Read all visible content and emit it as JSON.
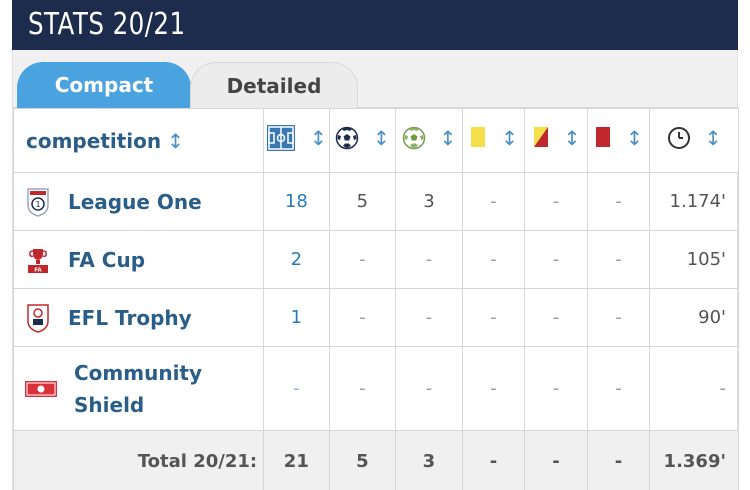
{
  "header": {
    "title": "STATS 20/21"
  },
  "tabs": [
    {
      "label": "Compact",
      "active": true
    },
    {
      "label": "Detailed",
      "active": false
    }
  ],
  "table": {
    "competition_header": "competition",
    "sort_glyph": "↕",
    "column_icons": [
      "pitch-icon",
      "ball-icon",
      "assist-ball-icon",
      "yellow-card-icon",
      "yellow-red-card-icon",
      "red-card-icon",
      "clock-icon"
    ],
    "rows": [
      {
        "competition": "League One",
        "logo": "league-one-logo",
        "apps": "18",
        "goals": "5",
        "assists": "3",
        "yellow": "-",
        "yellow_red": "-",
        "red": "-",
        "minutes": "1.174'"
      },
      {
        "competition": "FA Cup",
        "logo": "fa-cup-logo",
        "apps": "2",
        "goals": "-",
        "assists": "-",
        "yellow": "-",
        "yellow_red": "-",
        "red": "-",
        "minutes": "105'"
      },
      {
        "competition": "EFL Trophy",
        "logo": "efl-trophy-logo",
        "apps": "1",
        "goals": "-",
        "assists": "-",
        "yellow": "-",
        "yellow_red": "-",
        "red": "-",
        "minutes": "90'"
      },
      {
        "competition_line1": "Community",
        "competition_line2": "Shield",
        "logo": "community-shield-logo",
        "apps": "-",
        "goals": "-",
        "assists": "-",
        "yellow": "-",
        "yellow_red": "-",
        "red": "-",
        "minutes": "-"
      }
    ],
    "total": {
      "label": "Total 20/21:",
      "apps": "21",
      "goals": "5",
      "assists": "3",
      "yellow": "-",
      "yellow_red": "-",
      "red": "-",
      "minutes": "1.369'"
    }
  },
  "colors": {
    "header_bg": "#1d2c4c",
    "tab_active": "#4aa3df",
    "link_blue": "#2a5d87",
    "yellow_card": "#f5e04a",
    "red_card": "#c0282d"
  }
}
